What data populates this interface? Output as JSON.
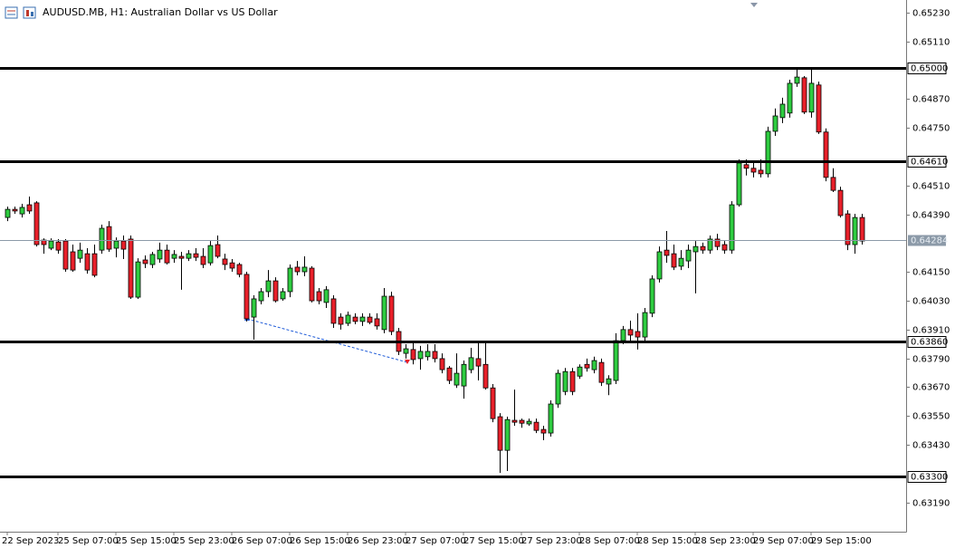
{
  "chart_data": {
    "type": "candlestick",
    "title": "AUDUSD.MB, H1:  Australian Dollar vs US Dollar",
    "categories": [
      "22 Sep 2023",
      null,
      null,
      null,
      null,
      null,
      null,
      "25 Sep 07:00",
      null,
      null,
      null,
      null,
      null,
      null,
      null,
      "25 Sep 15:00",
      null,
      null,
      null,
      null,
      null,
      null,
      null,
      "25 Sep 23:00",
      null,
      null,
      null,
      null,
      null,
      null,
      null,
      "26 Sep 07:00",
      null,
      null,
      null,
      null,
      null,
      null,
      null,
      "26 Sep 15:00",
      null,
      null,
      null,
      null,
      null,
      null,
      null,
      "26 Sep 23:00",
      null,
      null,
      null,
      null,
      null,
      null,
      null,
      "27 Sep 07:00",
      null,
      null,
      null,
      null,
      null,
      null,
      null,
      "27 Sep 15:00",
      null,
      null,
      null,
      null,
      null,
      null,
      null,
      "27 Sep 23:00",
      null,
      null,
      null,
      null,
      null,
      null,
      null,
      "28 Sep 07:00",
      null,
      null,
      null,
      null,
      null,
      null,
      null,
      "28 Sep 15:00",
      null,
      null,
      null,
      null,
      null,
      null,
      null,
      "28 Sep 23:00",
      null,
      null,
      null,
      null,
      null,
      null,
      null,
      "29 Sep 07:00",
      null,
      null,
      null,
      null,
      null,
      null,
      null,
      "29 Sep 15:00",
      null,
      null,
      null,
      null,
      null,
      null,
      null
    ],
    "open": [
      0.64377,
      0.64411,
      0.64392,
      0.6443,
      0.64438,
      0.64283,
      0.64249,
      0.64275,
      0.64279,
      0.64234,
      0.64207,
      0.64226,
      0.64226,
      0.64241,
      0.64339,
      0.64249,
      0.64279,
      0.64287,
      0.64045,
      0.642,
      0.64181,
      0.64204,
      0.64241,
      0.64207,
      0.64215,
      0.64207,
      0.64226,
      0.64215,
      0.64188,
      0.64264,
      0.64204,
      0.64188,
      0.64181,
      0.6414,
      0.63962,
      0.6403,
      0.64068,
      0.64113,
      0.64038,
      0.64068,
      0.6417,
      0.64151,
      0.64166,
      0.64068,
      0.64023,
      0.64038,
      0.63962,
      0.63936,
      0.63962,
      0.63944,
      0.63962,
      0.63955,
      0.6391,
      0.64049,
      0.63902,
      0.63811,
      0.63827,
      0.63789,
      0.63797,
      0.63819,
      0.63789,
      0.6375,
      0.63679,
      0.63675,
      0.63743,
      0.63789,
      0.63765,
      0.63667,
      0.63547,
      0.63407,
      0.63532,
      0.63532,
      0.63517,
      0.63524,
      0.63494,
      0.63479,
      0.636,
      0.63652,
      0.63735,
      0.63716,
      0.63765,
      0.63743,
      0.63773,
      0.63683,
      0.63698,
      0.63864,
      0.6391,
      0.63902,
      0.63879,
      0.63978,
      0.64121,
      0.64241,
      0.64226,
      0.64174,
      0.64196,
      0.64234,
      0.64256,
      0.64241,
      0.64287,
      0.64264,
      0.64241,
      0.6443,
      0.64597,
      0.64582,
      0.64574,
      0.64559,
      0.64736,
      0.64793,
      0.64812,
      0.64936,
      0.64959,
      0.64816,
      0.64929,
      0.64733,
      0.64544,
      0.6449,
      0.64392,
      0.64264,
      0.64377
    ],
    "high": [
      0.64422,
      0.64422,
      0.64434,
      0.64464,
      0.64445,
      0.6429,
      0.6429,
      0.64287,
      0.64287,
      0.64264,
      0.64272,
      0.64249,
      0.64264,
      0.64347,
      0.64362,
      0.64294,
      0.64302,
      0.64302,
      0.64207,
      0.64219,
      0.64234,
      0.64272,
      0.64264,
      0.64241,
      0.64234,
      0.64241,
      0.64249,
      0.64249,
      0.64279,
      0.64302,
      0.64226,
      0.64204,
      0.64188,
      0.64151,
      0.64053,
      0.64083,
      0.64158,
      0.64128,
      0.64083,
      0.64181,
      0.64196,
      0.64215,
      0.64174,
      0.64083,
      0.64091,
      0.64053,
      0.63978,
      0.63985,
      0.63978,
      0.63978,
      0.63978,
      0.63978,
      0.64083,
      0.64068,
      0.63917,
      0.63849,
      0.63857,
      0.63842,
      0.63849,
      0.63849,
      0.63811,
      0.63758,
      0.63811,
      0.63781,
      0.63834,
      0.63864,
      0.63864,
      0.63683,
      0.63562,
      0.63547,
      0.6366,
      0.63539,
      0.63539,
      0.63539,
      0.63509,
      0.63615,
      0.63743,
      0.6375,
      0.6375,
      0.63765,
      0.63789,
      0.63797,
      0.63789,
      0.6372,
      0.63895,
      0.63925,
      0.63947,
      0.63978,
      0.64,
      0.64136,
      0.64256,
      0.64321,
      0.64264,
      0.64241,
      0.64264,
      0.64279,
      0.64272,
      0.64302,
      0.64309,
      0.64279,
      0.64445,
      0.64619,
      0.64619,
      0.64604,
      0.64619,
      0.64755,
      0.64831,
      0.64876,
      0.64951,
      0.65004,
      0.64966,
      0.64996,
      0.64943,
      0.64748,
      0.64582,
      0.64505,
      0.64407,
      0.64392,
      0.64392
    ],
    "low": [
      0.64362,
      0.64392,
      0.64377,
      0.64392,
      0.64256,
      0.64226,
      0.64241,
      0.64226,
      0.64151,
      0.64151,
      0.64188,
      0.64143,
      0.64128,
      0.64226,
      0.64234,
      0.64211,
      0.64204,
      0.64038,
      0.64038,
      0.64166,
      0.64166,
      0.64188,
      0.64181,
      0.64188,
      0.64076,
      0.64196,
      0.64196,
      0.64166,
      0.64177,
      0.64207,
      0.64158,
      0.64151,
      0.64128,
      0.63944,
      0.63868,
      0.64015,
      0.64045,
      0.64023,
      0.6403,
      0.64045,
      0.64136,
      0.64132,
      0.64023,
      0.64015,
      0.64,
      0.63917,
      0.6391,
      0.63925,
      0.63932,
      0.63925,
      0.63932,
      0.6391,
      0.63895,
      0.63887,
      0.63804,
      0.63789,
      0.63765,
      0.63743,
      0.63781,
      0.63773,
      0.63728,
      0.63683,
      0.63667,
      0.63622,
      0.63728,
      0.63698,
      0.6366,
      0.63524,
      0.63313,
      0.63321,
      0.63509,
      0.63501,
      0.63509,
      0.63479,
      0.63449,
      0.63464,
      0.63584,
      0.63637,
      0.63637,
      0.63705,
      0.63735,
      0.63728,
      0.63675,
      0.63637,
      0.63683,
      0.63849,
      0.63864,
      0.63827,
      0.63864,
      0.63962,
      0.64106,
      0.64188,
      0.64158,
      0.64158,
      0.64166,
      0.64061,
      0.64226,
      0.64226,
      0.64241,
      0.64226,
      0.64226,
      0.64422,
      0.64552,
      0.64544,
      0.64544,
      0.64544,
      0.64717,
      0.6477,
      0.64793,
      0.64921,
      0.64808,
      0.64793,
      0.64725,
      0.64528,
      0.64483,
      0.64377,
      0.64241,
      0.64226,
      0.64264
    ],
    "close": [
      0.64411,
      0.64404,
      0.64419,
      0.64404,
      0.64264,
      0.64264,
      0.64279,
      0.64241,
      0.64162,
      0.64158,
      0.64241,
      0.64158,
      0.64136,
      0.64332,
      0.64245,
      0.64279,
      0.64245,
      0.64045,
      0.64192,
      0.64185,
      0.64223,
      0.64241,
      0.64188,
      0.64223,
      0.64207,
      0.64226,
      0.64211,
      0.64181,
      0.6426,
      0.64215,
      0.64181,
      0.64166,
      0.6414,
      0.63955,
      0.64038,
      0.64068,
      0.64113,
      0.6403,
      0.64068,
      0.64166,
      0.64151,
      0.6417,
      0.6403,
      0.6403,
      0.64076,
      0.63936,
      0.63932,
      0.6397,
      0.63944,
      0.63962,
      0.6394,
      0.63925,
      0.64049,
      0.63902,
      0.63819,
      0.6383,
      0.63785,
      0.63819,
      0.63819,
      0.63789,
      0.63743,
      0.63698,
      0.63728,
      0.63765,
      0.63793,
      0.63758,
      0.63667,
      0.63539,
      0.63407,
      0.63535,
      0.63524,
      0.6352,
      0.63528,
      0.6349,
      0.63479,
      0.636,
      0.63728,
      0.63735,
      0.63652,
      0.63754,
      0.6375,
      0.63781,
      0.6369,
      0.63705,
      0.63864,
      0.6391,
      0.63887,
      0.63879,
      0.63981,
      0.64121,
      0.64234,
      0.64219,
      0.6417,
      0.64207,
      0.64241,
      0.64256,
      0.64241,
      0.64287,
      0.64256,
      0.64241,
      0.6443,
      0.64604,
      0.64582,
      0.64566,
      0.64559,
      0.64736,
      0.648,
      0.64849,
      0.64936,
      0.64962,
      0.64816,
      0.64936,
      0.64733,
      0.64544,
      0.6449,
      0.64385,
      0.64264,
      0.64377,
      0.64279
    ],
    "up_color": "#2ecc40",
    "down_color": "#e8202a",
    "ylim": [
      0.63068,
      0.65283
    ],
    "yticks": [
      {
        "value": 0.6523,
        "label": "0.65230"
      },
      {
        "value": 0.6511,
        "label": "0.65110"
      },
      {
        "value": 0.6487,
        "label": "0.64870"
      },
      {
        "value": 0.6475,
        "label": "0.64750"
      },
      {
        "value": 0.6451,
        "label": "0.64510"
      },
      {
        "value": 0.6439,
        "label": "0.64390"
      },
      {
        "value": 0.6415,
        "label": "0.64150"
      },
      {
        "value": 0.6403,
        "label": "0.64030"
      },
      {
        "value": 0.6391,
        "label": "0.63910"
      },
      {
        "value": 0.6379,
        "label": "0.63790"
      },
      {
        "value": 0.6367,
        "label": "0.63670"
      },
      {
        "value": 0.6355,
        "label": "0.63550"
      },
      {
        "value": 0.6343,
        "label": "0.63430"
      },
      {
        "value": 0.6319,
        "label": "0.63190"
      }
    ],
    "levels": [
      {
        "value": 0.65,
        "label": "0.65000"
      },
      {
        "value": 0.6461,
        "label": "0.64610"
      },
      {
        "value": 0.6386,
        "label": "0.63860"
      },
      {
        "value": 0.633,
        "label": "0.63300"
      }
    ],
    "current_price": 0.64284
  }
}
